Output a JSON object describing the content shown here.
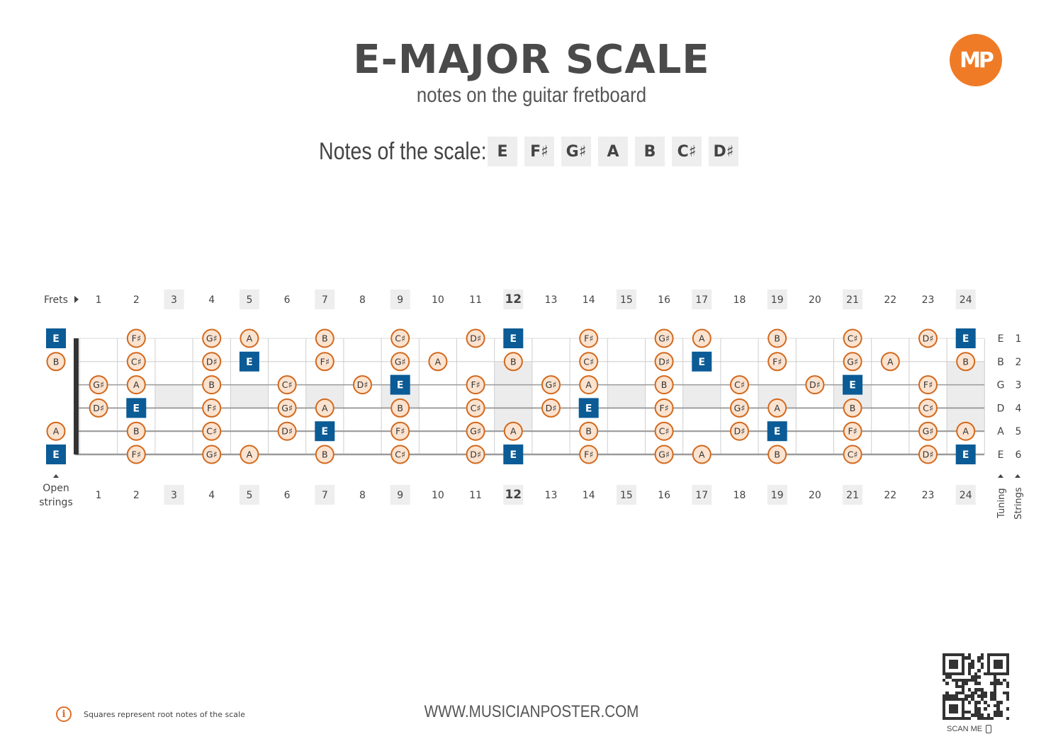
{
  "header": {
    "title": "E-MAJOR SCALE",
    "subtitle": "notes on the guitar fretboard",
    "logo_text": "MP",
    "logo_color": "#f07b26"
  },
  "scale": {
    "label": "Notes of the scale:",
    "notes": [
      "E",
      "F♯",
      "G♯",
      "A",
      "B",
      "C♯",
      "D♯"
    ]
  },
  "fretboard": {
    "frets_label": "Frets",
    "open_strings_label": [
      "Open",
      "strings"
    ],
    "tuning_label": "Tuning",
    "strings_label": "Strings",
    "frets": [
      1,
      2,
      3,
      4,
      5,
      6,
      7,
      8,
      9,
      10,
      11,
      12,
      13,
      14,
      15,
      16,
      17,
      18,
      19,
      20,
      21,
      22,
      23,
      24
    ],
    "marked_frets": [
      3,
      5,
      7,
      9,
      12,
      15,
      17,
      19,
      21,
      24
    ],
    "double_marker_fret": 12,
    "root_color": "#0b5b96",
    "note_fill": "#fbe3d0",
    "note_border": "#d2691e",
    "strings": [
      {
        "number": "1",
        "tuning": "E",
        "open": "E",
        "root": true
      },
      {
        "number": "2",
        "tuning": "B",
        "open": "B",
        "root": false
      },
      {
        "number": "3",
        "tuning": "G",
        "open": "",
        "root": false
      },
      {
        "number": "4",
        "tuning": "D",
        "open": "",
        "root": false
      },
      {
        "number": "5",
        "tuning": "A",
        "open": "A",
        "root": false
      },
      {
        "number": "6",
        "tuning": "E",
        "open": "E",
        "root": true
      }
    ],
    "notes": [
      [
        "",
        "F♯",
        "",
        "G♯",
        "A",
        "",
        "B",
        "",
        "C♯",
        "",
        "D♯",
        "E",
        "",
        "F♯",
        "",
        "G♯",
        "A",
        "",
        "B",
        "",
        "C♯",
        "",
        "D♯",
        "E"
      ],
      [
        "",
        "C♯",
        "",
        "D♯",
        "E",
        "",
        "F♯",
        "",
        "G♯",
        "A",
        "",
        "B",
        "",
        "C♯",
        "",
        "D♯",
        "E",
        "",
        "F♯",
        "",
        "G♯",
        "A",
        "",
        "B"
      ],
      [
        "G♯",
        "A",
        "",
        "B",
        "",
        "C♯",
        "",
        "D♯",
        "E",
        "",
        "F♯",
        "",
        "G♯",
        "A",
        "",
        "B",
        "",
        "C♯",
        "",
        "D♯",
        "E",
        "",
        "F♯",
        ""
      ],
      [
        "D♯",
        "E",
        "",
        "F♯",
        "",
        "G♯",
        "A",
        "",
        "B",
        "",
        "C♯",
        "",
        "D♯",
        "E",
        "",
        "F♯",
        "",
        "G♯",
        "A",
        "",
        "B",
        "",
        "C♯",
        ""
      ],
      [
        "",
        "B",
        "",
        "C♯",
        "",
        "D♯",
        "E",
        "",
        "F♯",
        "",
        "G♯",
        "A",
        "",
        "B",
        "",
        "C♯",
        "",
        "D♯",
        "E",
        "",
        "F♯",
        "",
        "G♯",
        "A"
      ],
      [
        "",
        "F♯",
        "",
        "G♯",
        "A",
        "",
        "B",
        "",
        "C♯",
        "",
        "D♯",
        "E",
        "",
        "F♯",
        "",
        "G♯",
        "A",
        "",
        "B",
        "",
        "C♯",
        "",
        "D♯",
        "E"
      ]
    ]
  },
  "footer": {
    "info_icon": "info-icon",
    "info_text": "Squares represent root notes of the scale",
    "website": "WWW.MUSICIANPOSTER.COM",
    "scan_label": "SCAN ME",
    "phone_icon": "phone-icon"
  }
}
